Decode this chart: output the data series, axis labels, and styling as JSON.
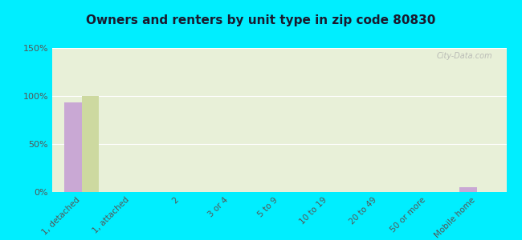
{
  "title": "Owners and renters by unit type in zip code 80830",
  "categories": [
    "1, detached",
    "1, attached",
    "2",
    "3 or 4",
    "5 to 9",
    "10 to 19",
    "20 to 49",
    "50 or more",
    "Mobile home"
  ],
  "owner_values": [
    93,
    0,
    0,
    0,
    0,
    0,
    0,
    0,
    5
  ],
  "renter_values": [
    100,
    0,
    0,
    0,
    0,
    0,
    0,
    0,
    0
  ],
  "owner_color": "#c9a8d4",
  "renter_color": "#cdd9a0",
  "background_color": "#00eeff",
  "plot_bg_color": "#e8f0d8",
  "ylim": [
    0,
    150
  ],
  "yticks": [
    0,
    50,
    100,
    150
  ],
  "ytick_labels": [
    "0%",
    "50%",
    "100%",
    "150%"
  ],
  "bar_width": 0.35,
  "title_fontsize": 11,
  "watermark_text": "City-Data.com"
}
